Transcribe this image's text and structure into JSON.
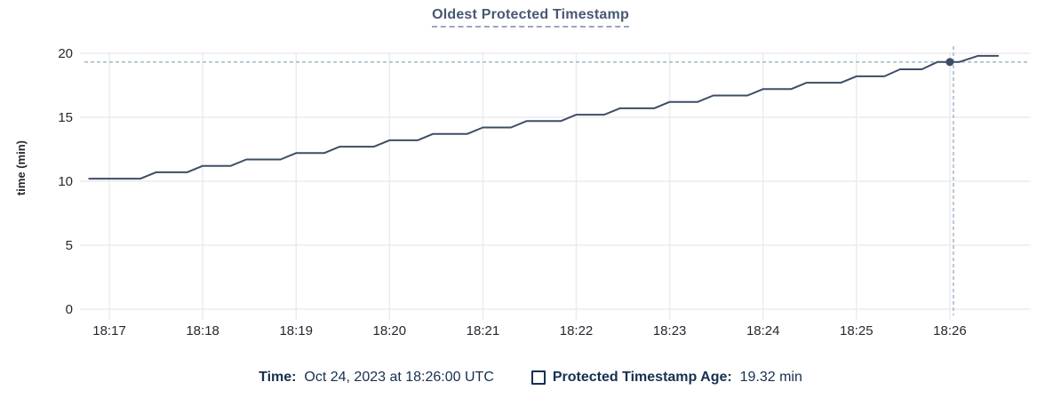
{
  "header": {
    "title": "Oldest Protected Timestamp"
  },
  "legend": {
    "time_label": "Time:",
    "time_value": "  Oct 24, 2023 at 18:26:00 UTC",
    "series_label": "Protected Timestamp Age:",
    "series_value": "  19.32 min"
  },
  "colors": {
    "line": "#3e4d66",
    "hover_dot": "#3e4d66",
    "crosshair": "#a9bdca",
    "grid": "#ececef",
    "axis_text": "#24292f",
    "title_text": "#475872",
    "legend_text": "#17304f",
    "background": "#ffffff"
  },
  "chart_data": {
    "type": "line",
    "title": "Oldest Protected Timestamp",
    "xlabel": "",
    "ylabel": "time (min)",
    "ylim": [
      0,
      20
    ],
    "y_ticks": [
      0,
      5,
      10,
      15,
      20
    ],
    "x_ticks": [
      "18:17",
      "18:18",
      "18:19",
      "18:20",
      "18:21",
      "18:22",
      "18:23",
      "18:24",
      "18:25",
      "18:26"
    ],
    "x_domain": [
      "18:16:44",
      "18:26:52"
    ],
    "grid": true,
    "legend_position": "bottom",
    "series": [
      {
        "name": "Protected Timestamp Age",
        "unit": "min",
        "points": [
          [
            "18:16:47",
            10.2
          ],
          [
            "18:17:20",
            10.2
          ],
          [
            "18:17:30",
            10.7
          ],
          [
            "18:17:50",
            10.7
          ],
          [
            "18:18:00",
            11.2
          ],
          [
            "18:18:18",
            11.2
          ],
          [
            "18:18:28",
            11.7
          ],
          [
            "18:18:50",
            11.7
          ],
          [
            "18:19:00",
            12.2
          ],
          [
            "18:19:18",
            12.2
          ],
          [
            "18:19:28",
            12.7
          ],
          [
            "18:19:50",
            12.7
          ],
          [
            "18:20:00",
            13.2
          ],
          [
            "18:20:18",
            13.2
          ],
          [
            "18:20:28",
            13.7
          ],
          [
            "18:20:50",
            13.7
          ],
          [
            "18:21:00",
            14.2
          ],
          [
            "18:21:18",
            14.2
          ],
          [
            "18:21:28",
            14.7
          ],
          [
            "18:21:50",
            14.7
          ],
          [
            "18:22:00",
            15.2
          ],
          [
            "18:22:18",
            15.2
          ],
          [
            "18:22:28",
            15.7
          ],
          [
            "18:22:50",
            15.7
          ],
          [
            "18:23:00",
            16.2
          ],
          [
            "18:23:18",
            16.2
          ],
          [
            "18:23:28",
            16.7
          ],
          [
            "18:23:50",
            16.7
          ],
          [
            "18:24:00",
            17.2
          ],
          [
            "18:24:18",
            17.2
          ],
          [
            "18:24:28",
            17.7
          ],
          [
            "18:24:50",
            17.7
          ],
          [
            "18:25:00",
            18.2
          ],
          [
            "18:25:18",
            18.2
          ],
          [
            "18:25:28",
            18.75
          ],
          [
            "18:25:42",
            18.75
          ],
          [
            "18:25:52",
            19.32
          ],
          [
            "18:26:06",
            19.32
          ],
          [
            "18:26:18",
            19.8
          ],
          [
            "18:26:31",
            19.8
          ]
        ]
      }
    ],
    "hover_point": {
      "time": "18:26:00",
      "value": 19.32
    }
  }
}
